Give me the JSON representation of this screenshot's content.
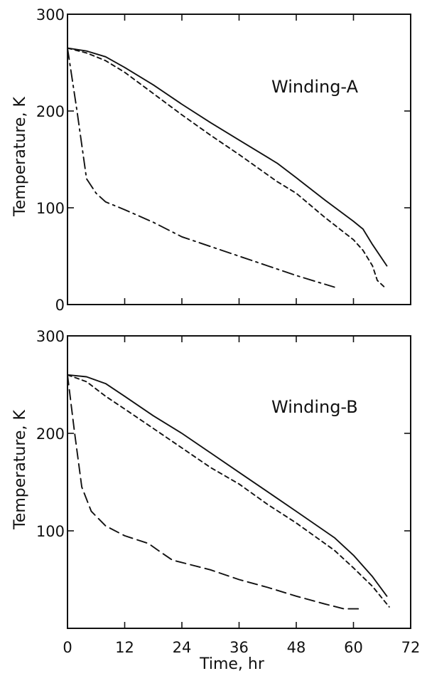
{
  "chart_data": [
    {
      "type": "line",
      "title": "",
      "annotation": "Winding-A",
      "xlabel": "",
      "ylabel": "Temperature, K",
      "xlim": [
        0,
        72
      ],
      "ylim": [
        0,
        300
      ],
      "x_ticks": [],
      "y_ticks": [
        "0",
        "100",
        "200",
        "300"
      ],
      "series": [
        {
          "style": "solid",
          "x": [
            0,
            4,
            8,
            12,
            18,
            24,
            30,
            36,
            44,
            48,
            54,
            60,
            62,
            64,
            67
          ],
          "y": [
            265,
            262,
            256,
            245,
            227,
            207,
            188,
            170,
            146,
            131,
            108,
            86,
            78,
            62,
            40
          ]
        },
        {
          "style": "dashed",
          "x": [
            0,
            4,
            8,
            12,
            18,
            24,
            30,
            36,
            44,
            48,
            54,
            60,
            62,
            64,
            65,
            66.5
          ],
          "y": [
            265,
            260,
            252,
            240,
            218,
            196,
            175,
            155,
            127,
            115,
            90,
            67,
            56,
            40,
            25,
            18
          ]
        },
        {
          "style": "dash-dot",
          "x": [
            0,
            2,
            4,
            6,
            8,
            12,
            18,
            24,
            30,
            36,
            42,
            48,
            52,
            56
          ],
          "y": [
            265,
            200,
            130,
            115,
            106,
            98,
            85,
            70,
            60,
            50,
            40,
            30,
            24,
            18
          ]
        }
      ]
    },
    {
      "type": "line",
      "title": "",
      "annotation": "Winding-B",
      "xlabel": "Time, hr",
      "ylabel": "Temperature, K",
      "xlim": [
        0,
        72
      ],
      "ylim": [
        0,
        300
      ],
      "x_ticks": [
        "0",
        "12",
        "24",
        "36",
        "48",
        "60",
        "72"
      ],
      "y_ticks": [
        "100",
        "200",
        "300"
      ],
      "series": [
        {
          "style": "solid",
          "x": [
            0,
            4,
            8,
            12,
            18,
            24,
            30,
            36,
            42,
            48,
            56,
            60,
            64,
            67
          ],
          "y": [
            260,
            258,
            251,
            238,
            218,
            200,
            180,
            160,
            140,
            120,
            93,
            75,
            53,
            33
          ]
        },
        {
          "style": "dashed",
          "x": [
            0,
            4,
            8,
            12,
            18,
            24,
            30,
            36,
            42,
            48,
            56,
            60,
            64,
            67.5
          ],
          "y": [
            260,
            253,
            238,
            225,
            205,
            185,
            165,
            148,
            127,
            108,
            80,
            62,
            43,
            22
          ]
        },
        {
          "style": "long-dash",
          "x": [
            0,
            1.5,
            3,
            5,
            8,
            12,
            17,
            19,
            22,
            30,
            36,
            42,
            48,
            54,
            58,
            61
          ],
          "y": [
            260,
            200,
            145,
            120,
            105,
            95,
            87,
            80,
            70,
            60,
            50,
            42,
            33,
            25,
            20,
            20
          ]
        }
      ]
    }
  ]
}
